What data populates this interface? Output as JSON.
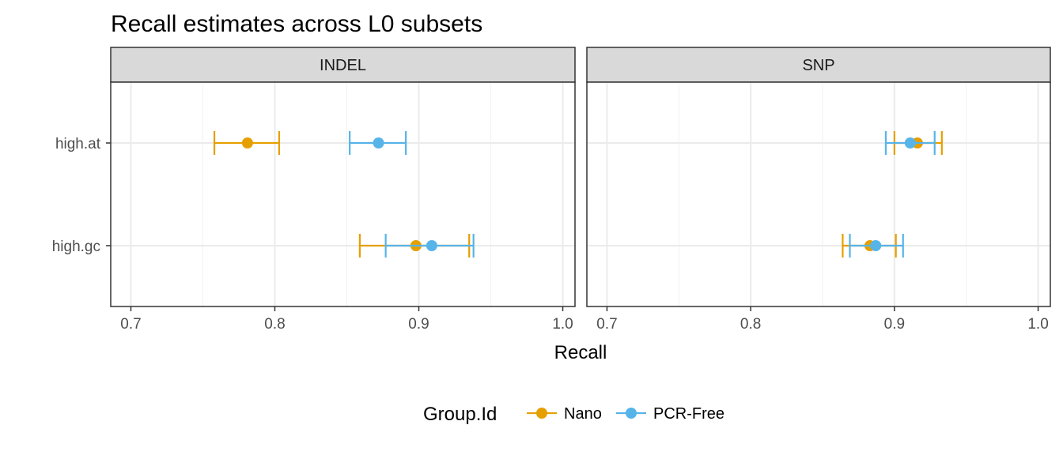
{
  "chart_data": {
    "type": "errorbar",
    "title": "Recall estimates across L0 subsets",
    "xlabel": "Recall",
    "ylabel": "",
    "xlim": [
      0.686,
      1.0085
    ],
    "x_ticks": [
      0.7,
      0.8,
      0.9,
      1.0
    ],
    "x_tick_labels": [
      "0.7",
      "0.8",
      "0.9",
      "1.0"
    ],
    "categories": [
      "high.at",
      "high.gc"
    ],
    "grid": true,
    "legend_position": "bottom",
    "legend_title": "Group.Id",
    "colors": {
      "Nano": "#E69F00",
      "PCR-Free": "#56B4E9"
    },
    "facets": [
      {
        "label": "INDEL",
        "series": [
          {
            "name": "Nano",
            "points": [
              {
                "category": "high.at",
                "estimate": 0.781,
                "lower": 0.758,
                "upper": 0.803
              },
              {
                "category": "high.gc",
                "estimate": 0.898,
                "lower": 0.859,
                "upper": 0.935
              }
            ]
          },
          {
            "name": "PCR-Free",
            "points": [
              {
                "category": "high.at",
                "estimate": 0.872,
                "lower": 0.852,
                "upper": 0.891
              },
              {
                "category": "high.gc",
                "estimate": 0.909,
                "lower": 0.877,
                "upper": 0.938
              }
            ]
          }
        ]
      },
      {
        "label": "SNP",
        "series": [
          {
            "name": "Nano",
            "points": [
              {
                "category": "high.at",
                "estimate": 0.916,
                "lower": 0.9,
                "upper": 0.933
              },
              {
                "category": "high.gc",
                "estimate": 0.883,
                "lower": 0.864,
                "upper": 0.901
              }
            ]
          },
          {
            "name": "PCR-Free",
            "points": [
              {
                "category": "high.at",
                "estimate": 0.911,
                "lower": 0.894,
                "upper": 0.928
              },
              {
                "category": "high.gc",
                "estimate": 0.887,
                "lower": 0.869,
                "upper": 0.906
              }
            ]
          }
        ]
      }
    ]
  }
}
